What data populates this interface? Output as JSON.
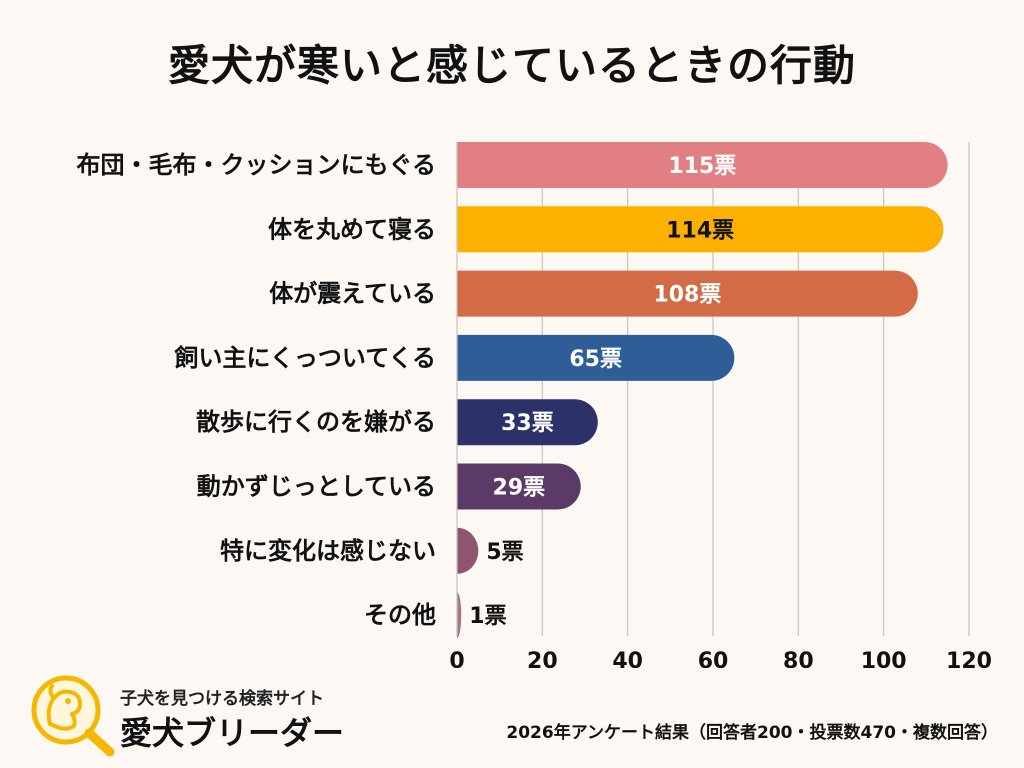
{
  "title": "愛犬が寒いと感じているときの行動",
  "chart_data": {
    "type": "bar",
    "orientation": "horizontal",
    "title": "愛犬が寒いと感じているときの行動",
    "categories": [
      "布団・毛布・クッションにもぐる",
      "体を丸めて寝る",
      "体が震えている",
      "飼い主にくっついてくる",
      "散歩に行くのを嫌がる",
      "動かずじっとしている",
      "特に変化は感じない",
      "その他"
    ],
    "values": [
      115,
      114,
      108,
      65,
      33,
      29,
      5,
      1
    ],
    "value_labels": [
      "115票",
      "114票",
      "108票",
      "65票",
      "33票",
      "29票",
      "5票",
      "1票"
    ],
    "colors": [
      "#e17f83",
      "#fcb000",
      "#d16c47",
      "#2f5d98",
      "#2c3169",
      "#5c3a68",
      "#8e5470",
      "#a87488"
    ],
    "label_colors": [
      "#ffffff",
      "#111111",
      "#ffffff",
      "#ffffff",
      "#ffffff",
      "#ffffff",
      "#111111",
      "#111111"
    ],
    "xlim": [
      0,
      120
    ],
    "xticks": [
      0,
      20,
      40,
      60,
      80,
      100,
      120
    ],
    "xtick_labels": [
      "0",
      "20",
      "40",
      "60",
      "80",
      "100",
      "120"
    ],
    "grid": true,
    "xlabel": "",
    "ylabel": ""
  },
  "footer": {
    "note": "2026年アンケート結果（回答者200・投票数470・複数回答）"
  },
  "brand": {
    "tagline": "子犬を見つける検索サイト",
    "name": "愛犬ブリーダー",
    "accent_color": "#f5b800"
  }
}
